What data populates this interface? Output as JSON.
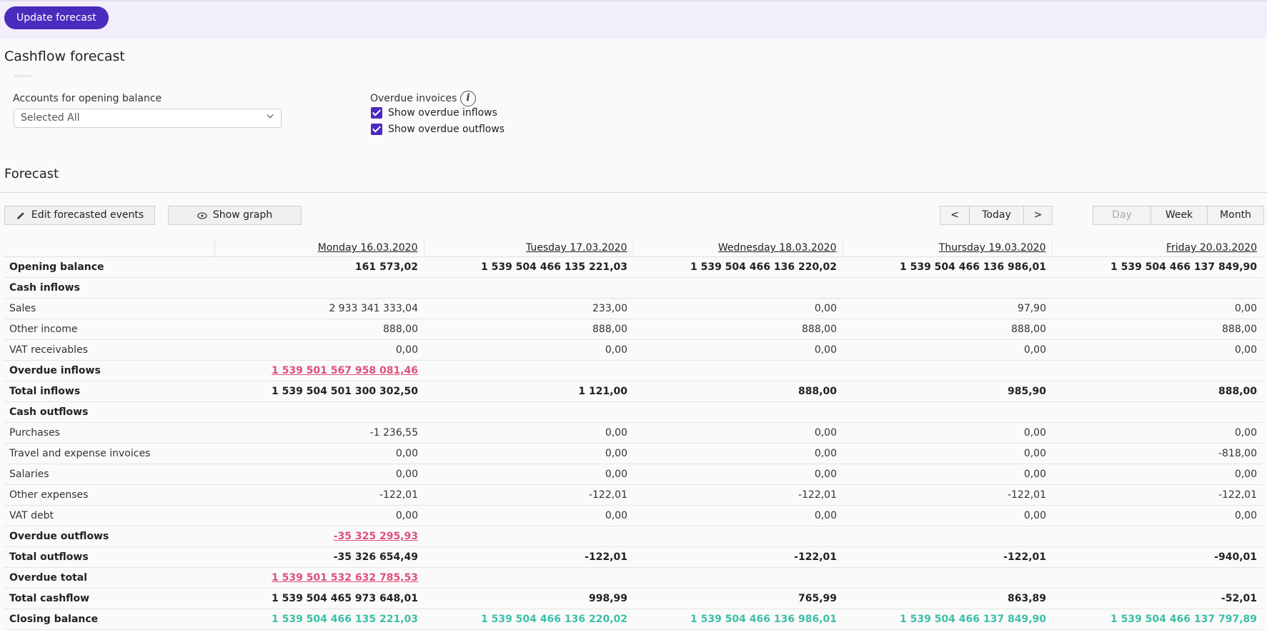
{
  "header": {
    "update_button": "Update forecast"
  },
  "settings": {
    "title": "Cashflow forecast",
    "accounts_label": "Accounts for opening balance",
    "accounts_value": "Selected All",
    "overdue_label": "Overdue invoices",
    "overdue_info_icon": "info-icon",
    "show_overdue_inflows": {
      "label": "Show overdue inflows",
      "checked": true
    },
    "show_overdue_outflows": {
      "label": "Show overdue outflows",
      "checked": true
    }
  },
  "forecast": {
    "title": "Forecast",
    "edit_button": "Edit forecasted events",
    "graph_button": "Show graph",
    "nav": {
      "prev": "<",
      "today": "Today",
      "next": ">"
    },
    "periods": [
      "Day",
      "Week",
      "Month"
    ],
    "active_period": "Day",
    "columns": [
      "Monday 16.03.2020",
      "Tuesday 17.03.2020",
      "Wednesday 18.03.2020",
      "Thursday 19.03.2020",
      "Friday 20.03.2020"
    ],
    "rows": [
      {
        "label": "Opening balance",
        "bold": true,
        "values": [
          "161 573,02",
          "1 539 504 466 135 221,03",
          "1 539 504 466 136 220,02",
          "1 539 504 466 136 986,01",
          "1 539 504 466 137 849,90"
        ]
      },
      {
        "label": "Cash inflows",
        "bold": true,
        "values": [
          "",
          "",
          "",
          "",
          ""
        ]
      },
      {
        "label": "Sales",
        "bold": false,
        "values": [
          "2 933 341 333,04",
          "233,00",
          "0,00",
          "97,90",
          "0,00"
        ]
      },
      {
        "label": "Other income",
        "bold": false,
        "values": [
          "888,00",
          "888,00",
          "888,00",
          "888,00",
          "888,00"
        ]
      },
      {
        "label": "VAT receivables",
        "bold": false,
        "values": [
          "0,00",
          "0,00",
          "0,00",
          "0,00",
          "0,00"
        ]
      },
      {
        "label": "Overdue inflows",
        "bold": true,
        "style": "link",
        "values": [
          "1 539 501 567 958 081,46",
          "",
          "",
          "",
          ""
        ]
      },
      {
        "label": "Total inflows",
        "bold": true,
        "values": [
          "1 539 504 501 300 302,50",
          "1 121,00",
          "888,00",
          "985,90",
          "888,00"
        ]
      },
      {
        "label": "Cash outflows",
        "bold": true,
        "values": [
          "",
          "",
          "",
          "",
          ""
        ]
      },
      {
        "label": "Purchases",
        "bold": false,
        "values": [
          "-1 236,55",
          "0,00",
          "0,00",
          "0,00",
          "0,00"
        ]
      },
      {
        "label": "Travel and expense invoices",
        "bold": false,
        "values": [
          "0,00",
          "0,00",
          "0,00",
          "0,00",
          "-818,00"
        ]
      },
      {
        "label": "Salaries",
        "bold": false,
        "values": [
          "0,00",
          "0,00",
          "0,00",
          "0,00",
          "0,00"
        ]
      },
      {
        "label": "Other expenses",
        "bold": false,
        "values": [
          "-122,01",
          "-122,01",
          "-122,01",
          "-122,01",
          "-122,01"
        ]
      },
      {
        "label": "VAT debt",
        "bold": false,
        "values": [
          "0,00",
          "0,00",
          "0,00",
          "0,00",
          "0,00"
        ]
      },
      {
        "label": "Overdue outflows",
        "bold": true,
        "style": "link",
        "values": [
          "-35 325 295,93",
          "",
          "",
          "",
          ""
        ]
      },
      {
        "label": "Total outflows",
        "bold": true,
        "values": [
          "-35 326 654,49",
          "-122,01",
          "-122,01",
          "-122,01",
          "-940,01"
        ]
      },
      {
        "label": "Overdue total",
        "bold": true,
        "style": "link",
        "values": [
          "1 539 501 532 632 785,53",
          "",
          "",
          "",
          ""
        ]
      },
      {
        "label": "Total cashflow",
        "bold": true,
        "values": [
          "1 539 504 465 973 648,01",
          "998,99",
          "765,99",
          "863,89",
          "-52,01"
        ]
      },
      {
        "label": "Closing balance",
        "bold": true,
        "style": "teal",
        "values": [
          "1 539 504 466 135 221,03",
          "1 539 504 466 136 220,02",
          "1 539 504 466 136 986,01",
          "1 539 504 466 137 849,90",
          "1 539 504 466 137 797,89"
        ]
      }
    ]
  }
}
